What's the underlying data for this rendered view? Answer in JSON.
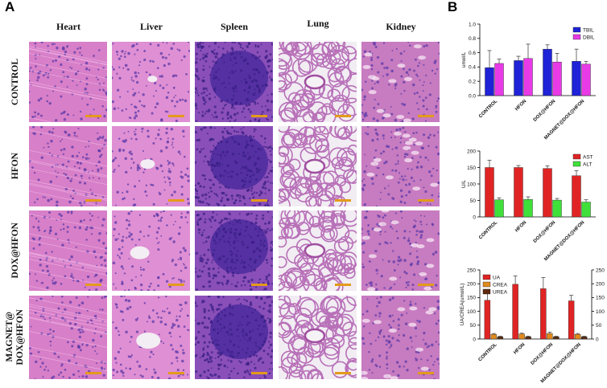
{
  "panel_a": {
    "label": "A",
    "columns": [
      "Heart",
      "Liver",
      "Spleen",
      "Lung",
      "Kidney"
    ],
    "rows": [
      "CONTROL",
      "HFON",
      "DOX@HFON",
      "MAGNET@\nDOX@HFON"
    ]
  },
  "panel_b": {
    "label": "B"
  },
  "chart_data": [
    {
      "type": "bar",
      "categories": [
        "CONTROL",
        "HFON",
        "DOX@HFON",
        "MAGNET@DOX@HFON"
      ],
      "series": [
        {
          "name": "TBIL",
          "values": [
            0.39,
            0.49,
            0.65,
            0.48
          ],
          "errors": [
            0.24,
            0.06,
            0.06,
            0.17
          ],
          "color": "#1f22d6"
        },
        {
          "name": "DBIL",
          "values": [
            0.45,
            0.52,
            0.47,
            0.44
          ],
          "errors": [
            0.06,
            0.2,
            0.12,
            0.04
          ],
          "color": "#e83ae6"
        }
      ],
      "ylabel": "umol/L",
      "ylim": [
        0,
        1.0
      ],
      "yticks": [
        "0.0",
        "0.2",
        "0.4",
        "0.6",
        "0.8",
        "1.0"
      ],
      "legend": "top-right"
    },
    {
      "type": "bar",
      "categories": [
        "CONTROL",
        "HFON",
        "DOX@HFON",
        "MAGNET@DOX@HFON"
      ],
      "series": [
        {
          "name": "AST",
          "values": [
            150,
            150,
            147,
            125
          ],
          "errors": [
            22,
            6,
            8,
            15
          ],
          "color": "#e02424"
        },
        {
          "name": "ALT",
          "values": [
            52,
            53,
            51,
            45
          ],
          "errors": [
            6,
            8,
            5,
            7
          ],
          "color": "#3fe03a"
        }
      ],
      "ylabel": "U/L",
      "ylim": [
        0,
        200
      ],
      "yticks": [
        "0",
        "50",
        "100",
        "150",
        "200"
      ],
      "legend": "top-right"
    },
    {
      "type": "bar",
      "categories": [
        "CONTROL",
        "HFON",
        "DOX@HFON",
        "MAGNET@DOX@HFON"
      ],
      "series": [
        {
          "name": "UA",
          "values": [
            140,
            198,
            182,
            138
          ],
          "errors": [
            35,
            30,
            40,
            20
          ],
          "color": "#e02424"
        },
        {
          "name": "CREA",
          "values": [
            17,
            18,
            20,
            17
          ],
          "errors": [
            3,
            3,
            5,
            3
          ],
          "color": "#e08a1e"
        },
        {
          "name": "UREA",
          "values": [
            8,
            8,
            8,
            8
          ],
          "errors": [
            2,
            2,
            2,
            2
          ],
          "color": "#5c2a10",
          "axis": "right"
        }
      ],
      "ylabel": "UA/CREA(umol/L)",
      "ylabel_right": "UREA(mmol/L)",
      "ylim": [
        0,
        250
      ],
      "yticks": [
        "0",
        "50",
        "100",
        "150",
        "200",
        "250"
      ],
      "yticks_right": [
        "0",
        "50",
        "100",
        "150",
        "200",
        "250"
      ],
      "legend": "top-left"
    }
  ]
}
